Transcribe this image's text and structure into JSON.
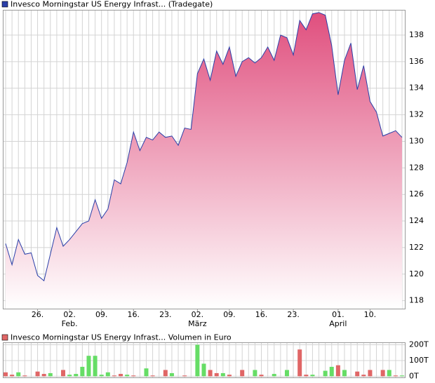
{
  "chart_data": [
    {
      "type": "area",
      "title": "Invesco Morningstar US Energy Infrast... (Tradegate)",
      "series": [
        {
          "name": "Invesco Morningstar US Energy Infrast... (Tradegate)",
          "color": "#2a3fa8",
          "fill_top": "#e04f7e",
          "values": [
            122.3,
            120.7,
            122.6,
            121.5,
            121.6,
            119.9,
            119.5,
            121.5,
            123.5,
            122.1,
            122.6,
            123.2,
            123.8,
            124.0,
            125.6,
            124.2,
            124.9,
            127.1,
            126.8,
            128.4,
            130.7,
            129.3,
            130.3,
            130.1,
            130.7,
            130.3,
            130.4,
            129.7,
            131.0,
            130.9,
            135.1,
            136.2,
            134.6,
            136.8,
            135.8,
            137.1,
            134.9,
            136.0,
            136.3,
            135.9,
            136.3,
            137.1,
            136.1,
            138.0,
            137.8,
            136.5,
            139.1,
            138.4,
            139.6,
            139.7,
            139.5,
            137.2,
            133.5,
            136.1,
            137.4,
            133.9,
            135.7,
            133.0,
            132.2,
            130.4,
            130.6,
            130.8,
            130.3
          ]
        }
      ],
      "ylim": [
        117.4,
        139.85
      ],
      "yticks": [
        118,
        120,
        122,
        124,
        126,
        128,
        130,
        132,
        134,
        136,
        138
      ],
      "xticks": [
        {
          "value": 5,
          "label": "26."
        },
        {
          "value": 10,
          "label": "02."
        },
        {
          "value": 15,
          "label": "09."
        },
        {
          "value": 20,
          "label": "16."
        },
        {
          "value": 25,
          "label": "23."
        },
        {
          "value": 30,
          "label": "02."
        },
        {
          "value": 35,
          "label": "09."
        },
        {
          "value": 40,
          "label": "16."
        },
        {
          "value": 45,
          "label": "23."
        },
        {
          "value": 52,
          "label": "01."
        },
        {
          "value": 57,
          "label": "10."
        }
      ],
      "xtick_sublabels": [
        null,
        "Feb.",
        null,
        null,
        null,
        "März",
        null,
        null,
        null,
        "April",
        null
      ],
      "grid": true
    },
    {
      "type": "bar",
      "title": "Invesco Morningstar US Energy Infrast... Volumen in Euro",
      "legend_color": "#e06666",
      "series": [
        {
          "name": "Invesco Morningstar US Energy Infrast... Volumen in Euro",
          "values": [
            25,
            10,
            25,
            5,
            0,
            30,
            15,
            20,
            0,
            40,
            10,
            15,
            60,
            130,
            130,
            10,
            25,
            5,
            15,
            10,
            5,
            0,
            50,
            5,
            0,
            40,
            20,
            0,
            5,
            0,
            200,
            80,
            40,
            20,
            20,
            10,
            0,
            40,
            0,
            40,
            10,
            0,
            15,
            0,
            40,
            0,
            170,
            10,
            10,
            0,
            35,
            60,
            70,
            40,
            0,
            30,
            10,
            40,
            0,
            40,
            40,
            5,
            5
          ],
          "colors": [
            "#e06666",
            "#e06666",
            "#66dd66",
            "#e06666",
            "#e06666",
            "#e06666",
            "#e06666",
            "#66dd66",
            "#66dd66",
            "#e06666",
            "#66dd66",
            "#66dd66",
            "#66dd66",
            "#66dd66",
            "#66dd66",
            "#66dd66",
            "#66dd66",
            "#e06666",
            "#e06666",
            "#66dd66",
            "#e06666",
            "#e06666",
            "#66dd66",
            "#e06666",
            "#e06666",
            "#e06666",
            "#66dd66",
            "#e06666",
            "#e06666",
            "#e06666",
            "#66dd66",
            "#66dd66",
            "#e06666",
            "#e06666",
            "#66dd66",
            "#e06666",
            "#e06666",
            "#e06666",
            "#66dd66",
            "#66dd66",
            "#e06666",
            "#e06666",
            "#66dd66",
            "#66dd66",
            "#66dd66",
            "#e06666",
            "#e06666",
            "#e06666",
            "#66dd66",
            "#66dd66",
            "#66dd66",
            "#66dd66",
            "#e06666",
            "#66dd66",
            "#66dd66",
            "#e06666",
            "#e06666",
            "#e06666",
            "#e06666",
            "#e06666",
            "#66dd66",
            "#e06666",
            "#66dd66"
          ]
        }
      ],
      "ylim": [
        -7,
        211
      ],
      "yticks": [
        {
          "value": 200,
          "label": "200T"
        },
        {
          "value": 100,
          "label": "100T"
        },
        {
          "value": 0,
          "label": "0T"
        }
      ],
      "grid": true
    }
  ]
}
